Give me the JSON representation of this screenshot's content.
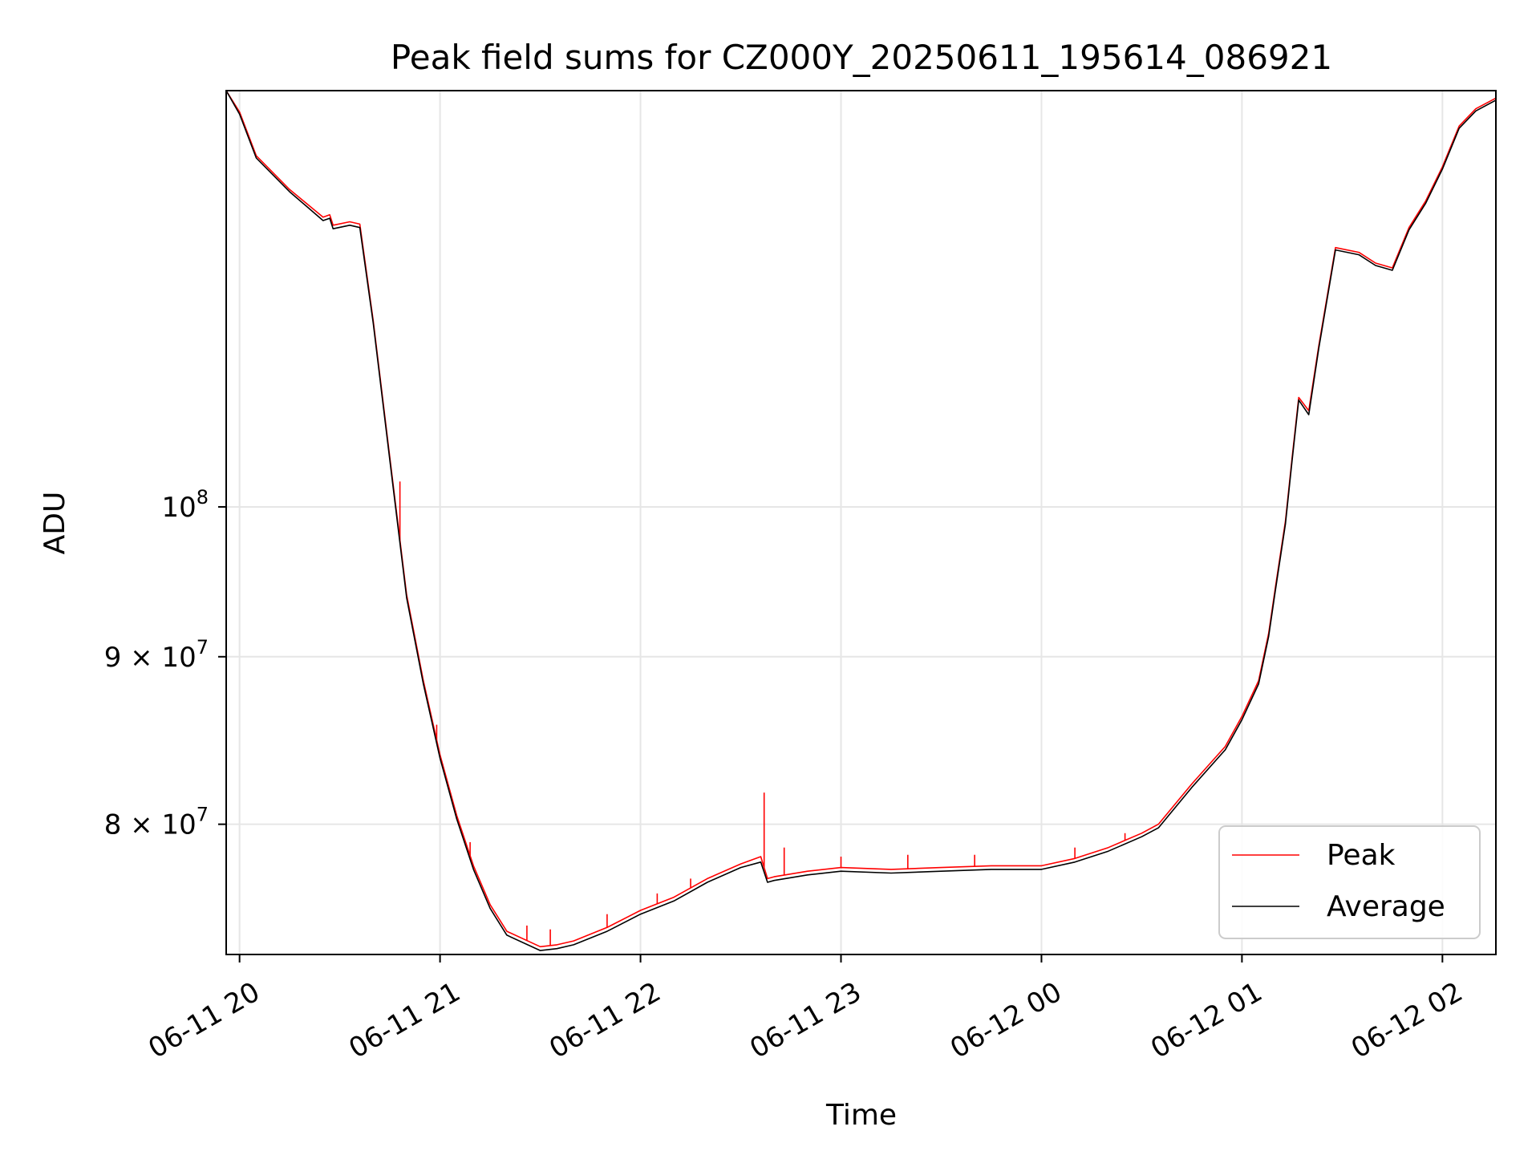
{
  "chart_data": {
    "type": "line",
    "title": "Peak field sums for CZ000Y_20250611_195614_086921",
    "xlabel": "Time",
    "ylabel": "ADU",
    "y_scale": "log",
    "grid": true,
    "legend_position": "lower-right",
    "xlim": [
      "2025-06-11 19:56",
      "2025-06-12 02:16"
    ],
    "ylim": [
      73000000,
      134000000
    ],
    "x_ticks": [
      {
        "label": "06-11 20",
        "time": "2025-06-11 20:00"
      },
      {
        "label": "06-11 21",
        "time": "2025-06-11 21:00"
      },
      {
        "label": "06-11 22",
        "time": "2025-06-11 22:00"
      },
      {
        "label": "06-11 23",
        "time": "2025-06-11 23:00"
      },
      {
        "label": "06-12 00",
        "time": "2025-06-12 00:00"
      },
      {
        "label": "06-12 01",
        "time": "2025-06-12 01:00"
      },
      {
        "label": "06-12 02",
        "time": "2025-06-12 02:00"
      }
    ],
    "y_ticks": [
      {
        "label_base": "8 × 10",
        "label_exp": "7",
        "value": 80000000
      },
      {
        "label_base": "9 × 10",
        "label_exp": "7",
        "value": 90000000
      },
      {
        "label_base": "10",
        "label_exp": "8",
        "value": 100000000
      }
    ],
    "x": [
      "2025-06-11 19:56",
      "2025-06-11 20:00",
      "2025-06-11 20:05",
      "2025-06-11 20:15",
      "2025-06-11 20:25",
      "2025-06-11 20:27",
      "2025-06-11 20:28",
      "2025-06-11 20:33",
      "2025-06-11 20:36",
      "2025-06-11 20:40",
      "2025-06-11 20:45",
      "2025-06-11 20:50",
      "2025-06-11 20:55",
      "2025-06-11 21:00",
      "2025-06-11 21:05",
      "2025-06-11 21:10",
      "2025-06-11 21:15",
      "2025-06-11 21:20",
      "2025-06-11 21:30",
      "2025-06-11 21:35",
      "2025-06-11 21:40",
      "2025-06-11 21:50",
      "2025-06-11 22:00",
      "2025-06-11 22:10",
      "2025-06-11 22:20",
      "2025-06-11 22:30",
      "2025-06-11 22:36",
      "2025-06-11 22:38",
      "2025-06-11 22:40",
      "2025-06-11 22:50",
      "2025-06-11 23:00",
      "2025-06-11 23:15",
      "2025-06-11 23:30",
      "2025-06-11 23:45",
      "2025-06-12 00:00",
      "2025-06-12 00:10",
      "2025-06-12 00:20",
      "2025-06-12 00:30",
      "2025-06-12 00:35",
      "2025-06-12 00:45",
      "2025-06-12 00:55",
      "2025-06-12 01:00",
      "2025-06-12 01:05",
      "2025-06-12 01:08",
      "2025-06-12 01:10",
      "2025-06-12 01:13",
      "2025-06-12 01:15",
      "2025-06-12 01:17",
      "2025-06-12 01:20",
      "2025-06-12 01:23",
      "2025-06-12 01:28",
      "2025-06-12 01:35",
      "2025-06-12 01:40",
      "2025-06-12 01:45",
      "2025-06-12 01:50",
      "2025-06-12 01:55",
      "2025-06-12 02:00",
      "2025-06-12 02:05",
      "2025-06-12 02:10",
      "2025-06-12 02:16"
    ],
    "series": [
      {
        "name": "Peak",
        "color": "#ff0000",
        "values": [
          134000000,
          132000000,
          128000000,
          125000000,
          122600000,
          122800000,
          121900000,
          122200000,
          122000000,
          114000000,
          103500000,
          94000000,
          88500000,
          84000000,
          80500000,
          77700000,
          75600000,
          74200000,
          73400000,
          73500000,
          73700000,
          74400000,
          75300000,
          76000000,
          77000000,
          77800000,
          78200000,
          77000000,
          77100000,
          77400000,
          77600000,
          77500000,
          77600000,
          77700000,
          77700000,
          78100000,
          78700000,
          79500000,
          80000000,
          82300000,
          84500000,
          86300000,
          88500000,
          91500000,
          94500000,
          99000000,
          103500000,
          108000000,
          107000000,
          112000000,
          120000000,
          119600000,
          118700000,
          118300000,
          121700000,
          124000000,
          127000000,
          130700000,
          132300000,
          133300000
        ]
      },
      {
        "name": "Average",
        "color": "#000000",
        "values": [
          134000000,
          131800000,
          127800000,
          124800000,
          122300000,
          122500000,
          121600000,
          121900000,
          121700000,
          113800000,
          103300000,
          93800000,
          88300000,
          83800000,
          80300000,
          77500000,
          75400000,
          74000000,
          73200000,
          73300000,
          73500000,
          74200000,
          75100000,
          75800000,
          76800000,
          77600000,
          77900000,
          76800000,
          76900000,
          77200000,
          77400000,
          77300000,
          77400000,
          77500000,
          77500000,
          77900000,
          78500000,
          79300000,
          79800000,
          82100000,
          84300000,
          86100000,
          88300000,
          91300000,
          94300000,
          98800000,
          103300000,
          107800000,
          106700000,
          111800000,
          119800000,
          119400000,
          118500000,
          118100000,
          121500000,
          123800000,
          126800000,
          130500000,
          132100000,
          133100000
        ]
      }
    ],
    "peak_spikes": [
      {
        "time": "2025-06-11 20:48",
        "value": 101800000
      },
      {
        "time": "2025-06-11 20:59",
        "value": 85800000
      },
      {
        "time": "2025-06-11 21:09",
        "value": 79000000
      },
      {
        "time": "2025-06-11 21:26",
        "value": 74500000
      },
      {
        "time": "2025-06-11 21:33",
        "value": 74300000
      },
      {
        "time": "2025-06-11 21:50",
        "value": 75100000
      },
      {
        "time": "2025-06-11 22:05",
        "value": 76200000
      },
      {
        "time": "2025-06-11 22:15",
        "value": 77000000
      },
      {
        "time": "2025-06-11 22:37",
        "value": 81800000
      },
      {
        "time": "2025-06-11 22:43",
        "value": 78700000
      },
      {
        "time": "2025-06-11 23:00",
        "value": 78200000
      },
      {
        "time": "2025-06-11 23:20",
        "value": 78300000
      },
      {
        "time": "2025-06-11 23:40",
        "value": 78300000
      },
      {
        "time": "2025-06-12 00:10",
        "value": 78700000
      },
      {
        "time": "2025-06-12 00:25",
        "value": 79500000
      }
    ]
  }
}
